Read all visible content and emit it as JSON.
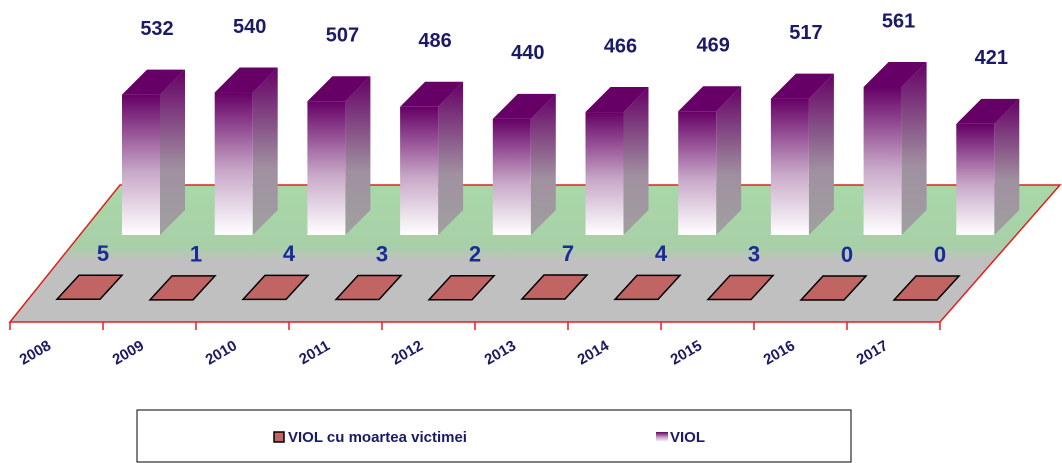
{
  "chart_data": {
    "type": "bar3d",
    "categories": [
      "2008",
      "2009",
      "2010",
      "2011",
      "2012",
      "2013",
      "2014",
      "2015",
      "2016",
      "2017"
    ],
    "series": [
      {
        "name": "VIOL cu moartea victimei",
        "color": "#c06464",
        "values": [
          5,
          1,
          4,
          3,
          2,
          7,
          4,
          3,
          0,
          0
        ]
      },
      {
        "name": "VIOL",
        "color": "#660066",
        "values": [
          532,
          540,
          507,
          486,
          440,
          466,
          469,
          517,
          561,
          421
        ]
      }
    ],
    "legend": "bottom"
  }
}
